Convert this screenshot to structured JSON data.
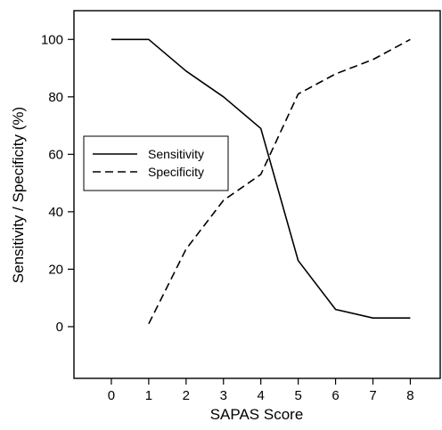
{
  "chart_data": {
    "type": "line",
    "title": "",
    "xlabel": "SAPAS Score",
    "ylabel": "Sensitivity / Specificity (%)",
    "xlim": [
      -1,
      8.8
    ],
    "ylim": [
      -18,
      110
    ],
    "xticks": [
      0,
      1,
      2,
      3,
      4,
      5,
      6,
      7,
      8
    ],
    "yticks": [
      0,
      20,
      40,
      60,
      80,
      100
    ],
    "grid": false,
    "legend_position": "middle-left",
    "series": [
      {
        "name": "Sensitivity",
        "line_style": "solid",
        "color": "#000000",
        "x": [
          0,
          1,
          2,
          3,
          4,
          5,
          6,
          7,
          8
        ],
        "y": [
          100,
          100,
          89,
          80,
          69,
          23,
          6,
          3,
          3
        ]
      },
      {
        "name": "Specificity",
        "line_style": "dashed",
        "color": "#000000",
        "x": [
          1,
          2,
          3,
          4,
          5,
          6,
          7,
          8
        ],
        "y": [
          1,
          27,
          44,
          53,
          81,
          88,
          93,
          100
        ]
      }
    ]
  }
}
